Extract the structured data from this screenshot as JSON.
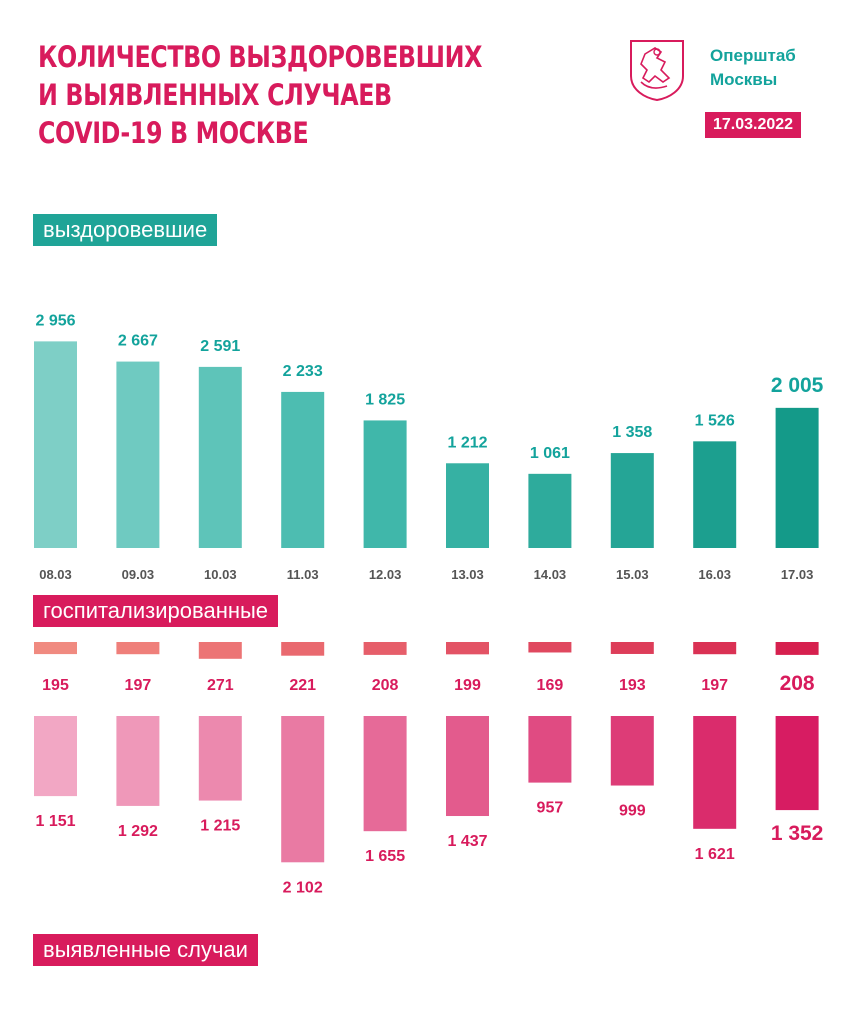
{
  "header": {
    "title_lines": [
      "КОЛИЧЕСТВО ВЫЗДОРОВЕВШИХ",
      "И ВЫЯВЛЕННЫХ СЛУЧАЕВ",
      "COVID-19 В МОСКВЕ"
    ],
    "org_lines": [
      "Оперштаб",
      "Москвы"
    ],
    "date": "17.03.2022",
    "logo_icon": "moscow-coat-of-arms-icon"
  },
  "labels": {
    "recovered": "выздоровевшие",
    "hospitalized": "госпитализированные",
    "cases": "выявленные случаи"
  },
  "colors": {
    "brand_pink": "#d81b5c",
    "brand_teal": "#13a39c",
    "tick_gray": "#555555"
  },
  "chart_data": [
    {
      "type": "bar",
      "categories": [
        "08.03",
        "09.03",
        "10.03",
        "11.03",
        "12.03",
        "13.03",
        "14.03",
        "15.03",
        "16.03",
        "17.03"
      ],
      "series": [
        {
          "name": "выздоровевшие",
          "values": [
            2956,
            2667,
            2591,
            2233,
            1825,
            1212,
            1061,
            1358,
            1526,
            2005
          ]
        }
      ],
      "value_labels": [
        "2 956",
        "2 667",
        "2 591",
        "2 233",
        "1 825",
        "1 212",
        "1 061",
        "1 358",
        "1 526",
        "2 005"
      ],
      "colors": [
        "#7ecfc6",
        "#6fcac1",
        "#5ec4b9",
        "#4dbdb1",
        "#40b7aa",
        "#36b1a3",
        "#2eab9c",
        "#25a596",
        "#1c9f8f",
        "#149a89"
      ]
    },
    {
      "type": "bar",
      "categories": [
        "08.03",
        "09.03",
        "10.03",
        "11.03",
        "12.03",
        "13.03",
        "14.03",
        "15.03",
        "16.03",
        "17.03"
      ],
      "series": [
        {
          "name": "госпитализированные",
          "values": [
            195,
            197,
            271,
            221,
            208,
            199,
            169,
            193,
            197,
            208
          ]
        }
      ],
      "value_labels": [
        "195",
        "197",
        "271",
        "221",
        "208",
        "199",
        "169",
        "193",
        "197",
        "208"
      ],
      "colors": [
        "#f08a80",
        "#ef7f7a",
        "#ec7475",
        "#e9696f",
        "#e65e6a",
        "#e35365",
        "#e0485f",
        "#dd3d59",
        "#da3154",
        "#d6204e"
      ]
    },
    {
      "type": "bar",
      "categories": [
        "08.03",
        "09.03",
        "10.03",
        "11.03",
        "12.03",
        "13.03",
        "14.03",
        "15.03",
        "16.03",
        "17.03"
      ],
      "series": [
        {
          "name": "выявленные случаи",
          "values": [
            1151,
            1292,
            1215,
            2102,
            1655,
            1437,
            957,
            999,
            1621,
            1352
          ]
        }
      ],
      "value_labels": [
        "1 151",
        "1 292",
        "1 215",
        "2 102",
        "1 655",
        "1 437",
        "957",
        "999",
        "1 621",
        "1 352"
      ],
      "colors": [
        "#f2a7c4",
        "#ef98b9",
        "#ec89ae",
        "#e97aa3",
        "#e66a98",
        "#e35b8d",
        "#e04b82",
        "#dd3c77",
        "#da2c6c",
        "#d71c62"
      ]
    }
  ]
}
